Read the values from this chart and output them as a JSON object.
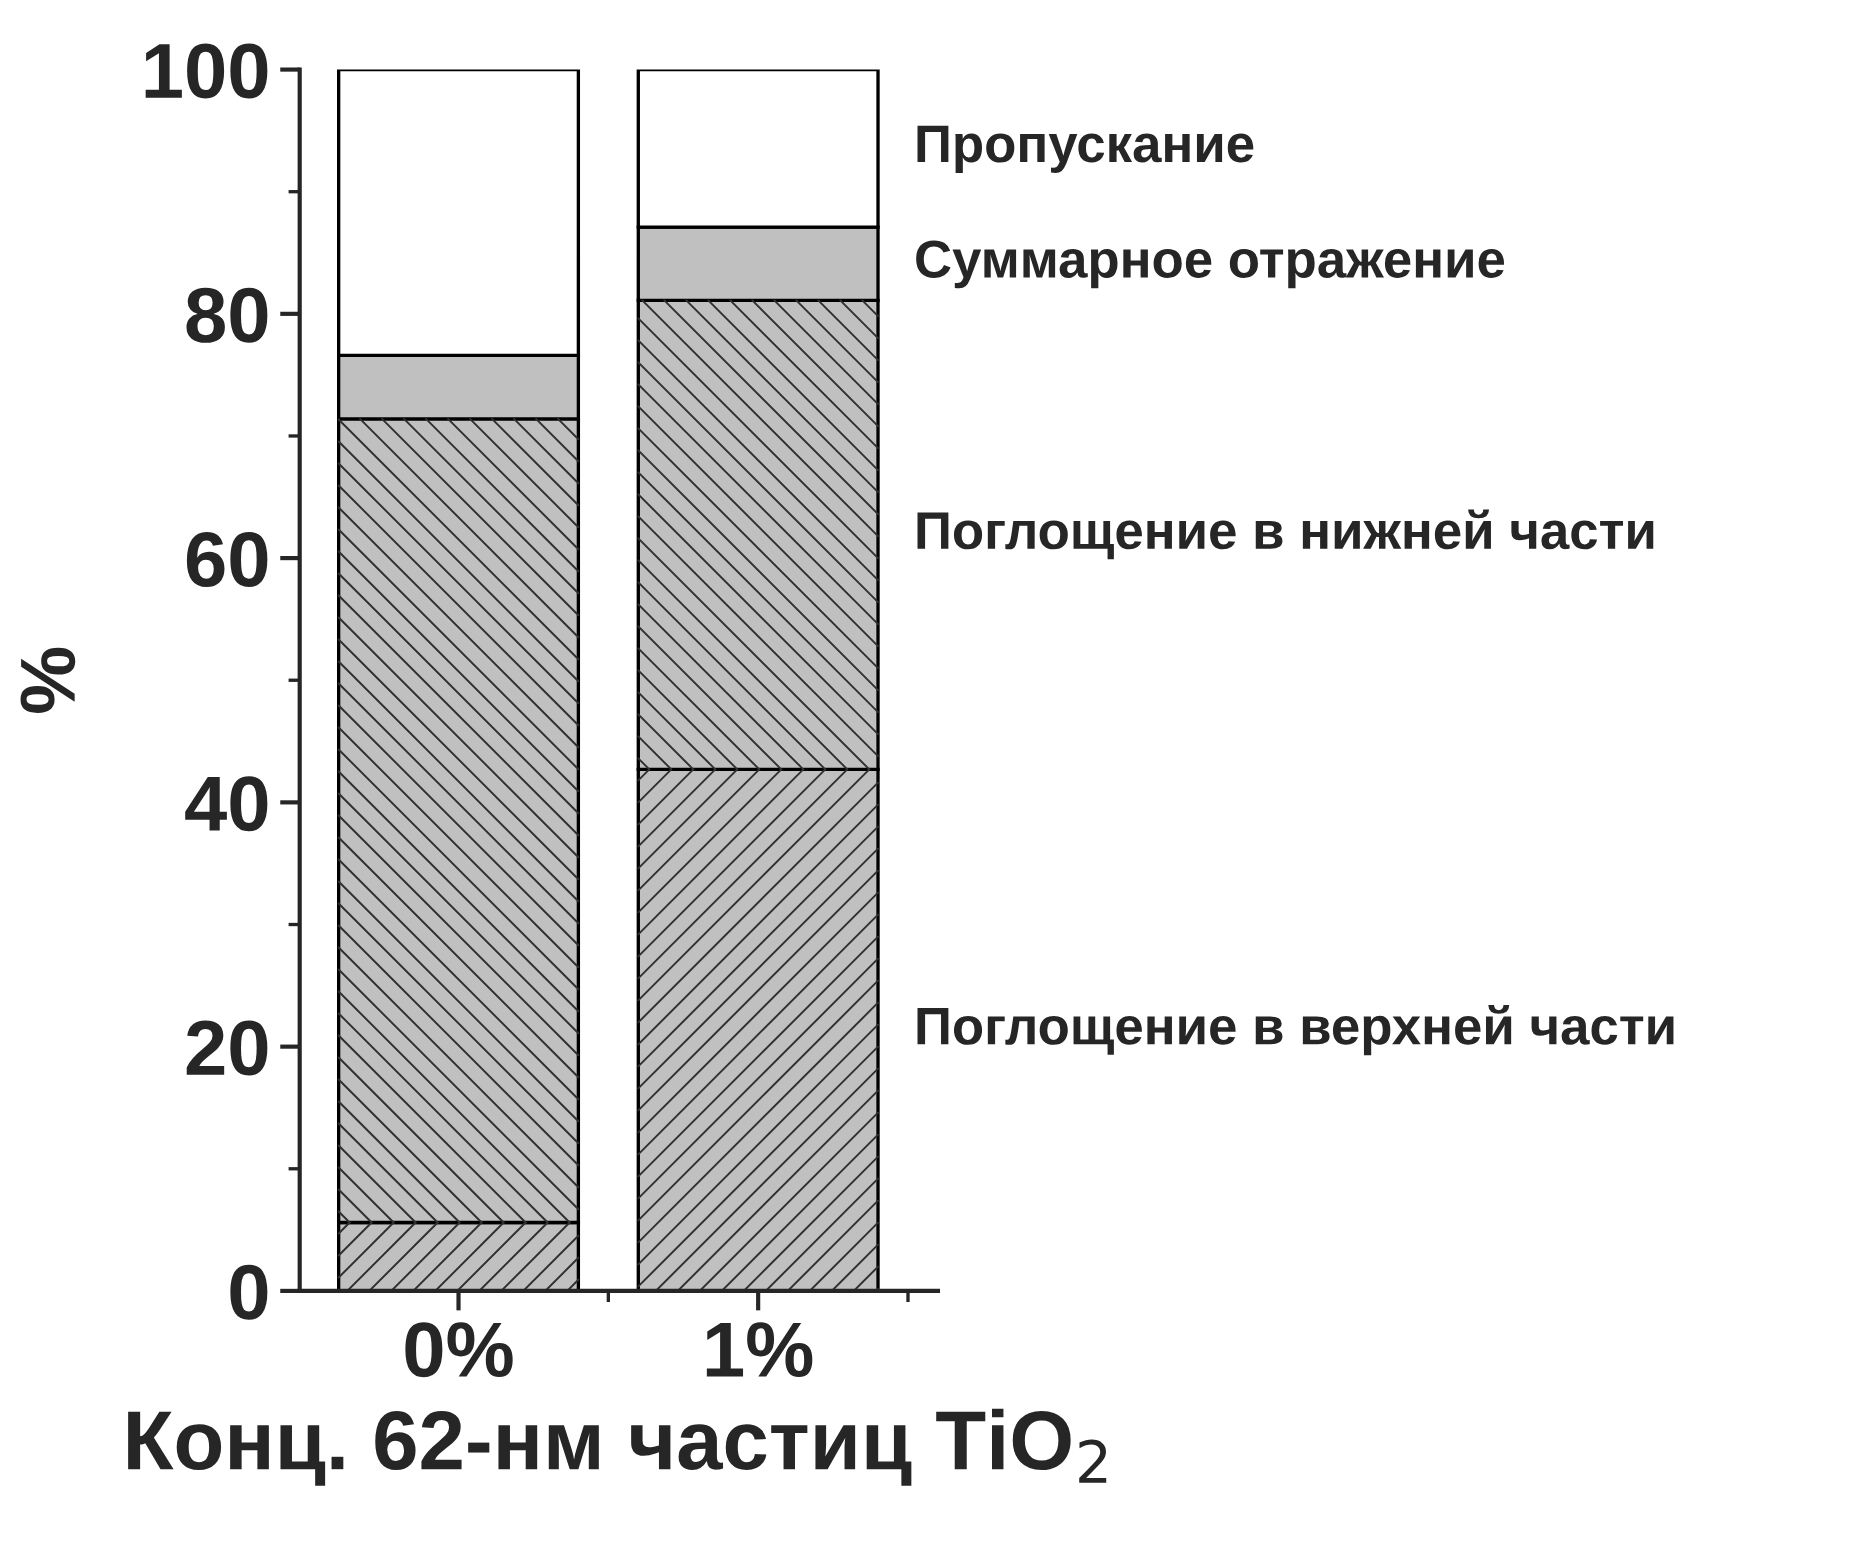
{
  "chart_data": {
    "type": "bar",
    "stacked": true,
    "xlabel": "Конц. 62-нм частиц TiO$_{2}$",
    "ylabel": "%",
    "categories": [
      "0%",
      "1%"
    ],
    "series": [
      {
        "name": "Поглощение в верхней части",
        "color": "#c0c0c0",
        "values": [
          5.6,
          42.7
        ]
      },
      {
        "name": "Поглощение в нижней части",
        "color": "#c0c0c0",
        "values": [
          65.8,
          38.4
        ]
      },
      {
        "name": "Суммарное отражение",
        "color": "#c0c0c0",
        "values": [
          5.2,
          6.0
        ]
      },
      {
        "name": "Пропускание",
        "color": "#ffffff",
        "values": [
          23.4,
          12.9
        ]
      }
    ],
    "ylim": [
      0,
      100
    ],
    "yticks": [
      0,
      20,
      40,
      60,
      80,
      100
    ],
    "grid": false,
    "legend": false
  }
}
